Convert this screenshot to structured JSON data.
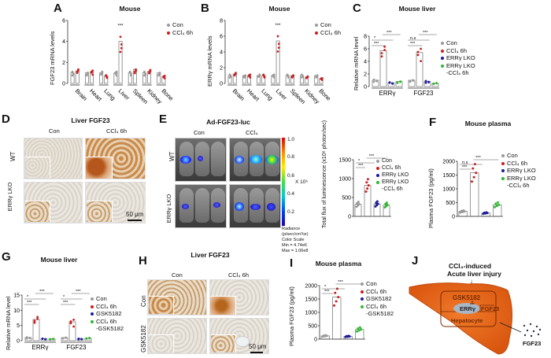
{
  "figure": {
    "panels": {
      "A": {
        "letter": "A",
        "title": "Mouse"
      },
      "B": {
        "letter": "B",
        "title": "Mouse"
      },
      "C": {
        "letter": "C",
        "title": "Mouse liver"
      },
      "D": {
        "letter": "D",
        "title": "Liver FGF23",
        "col_labels": [
          "Con",
          "CCl₄ 6h"
        ],
        "row_labels": [
          "WT",
          "ERRγ LKO"
        ],
        "scale_bar": "50 μm"
      },
      "E": {
        "letter": "E",
        "title": "Ad-FGF23-luc",
        "col_labels": [
          "Con",
          "CCl₄"
        ],
        "row_labels": [
          "WT",
          "ERRγ LKO"
        ],
        "colorbar_ticks": [
          "1.0",
          "0.8",
          "0.6",
          "0.4",
          "0.2"
        ],
        "colorbar_unit": "X 10⁶",
        "colorbar_caption": [
          "Radiance",
          "(p/sec/cm²/sr)",
          "Color Scale",
          "Min = 4.74e6",
          "Max = 1.06e8"
        ]
      },
      "F": {
        "letter": "F",
        "title": "Mouse plasma"
      },
      "G": {
        "letter": "G",
        "title": "Mouse liver"
      },
      "H": {
        "letter": "H",
        "title": "Liver FGF23",
        "col_labels": [
          "Con",
          "CCl₄ 6h"
        ],
        "row_labels": [
          "Con",
          "GSK5182"
        ],
        "scale_bar": "50 μm"
      },
      "I": {
        "letter": "I",
        "title": "Mouse plasma"
      },
      "J": {
        "letter": "J",
        "title": "CCl₄-induced",
        "subtitle": "Acute liver injury",
        "inhibitor": "GSK5182",
        "receptor": "ERRγ",
        "gene": "FGF23",
        "cell": "Hepatocyte",
        "secreted": "FGF23"
      }
    },
    "colors": {
      "con": "#9a9a9a",
      "ccl4": "#d01c1c",
      "lko": "#1a1a9e",
      "lko_ccl4": "#2eb82e",
      "liver": "#e8651a",
      "bar": "#ffffff"
    }
  },
  "chart_data": [
    {
      "id": "A",
      "type": "bar",
      "title": "Mouse",
      "xlabel": "",
      "ylabel": "FGF23 mRNA levels",
      "ylim": [
        0,
        6
      ],
      "yticks": [
        0,
        2,
        4,
        6
      ],
      "categories": [
        "Brain",
        "Heart",
        "Lung",
        "Liver",
        "Spleen",
        "Kidney",
        "Bone"
      ],
      "series": [
        {
          "name": "Con",
          "values": [
            1.0,
            1.0,
            1.0,
            1.0,
            1.0,
            1.0,
            1.0
          ]
        },
        {
          "name": "CCl₄ 6h",
          "values": [
            1.2,
            1.1,
            0.7,
            4.0,
            1.3,
            1.15,
            0.65
          ]
        }
      ],
      "annotations": [
        {
          "category": "Liver",
          "text": "***"
        }
      ],
      "legend": [
        "Con",
        "CCl₄ 6h"
      ]
    },
    {
      "id": "B",
      "type": "bar",
      "title": "Mouse",
      "ylabel": "ERRγ mRNA levels",
      "ylim": [
        0,
        8
      ],
      "yticks": [
        0,
        2,
        4,
        6,
        8
      ],
      "categories": [
        "Brain",
        "Heart",
        "Lung",
        "Liver",
        "Spleen",
        "Kidney",
        "Bone"
      ],
      "series": [
        {
          "name": "Con",
          "values": [
            1.0,
            1.0,
            1.0,
            1.0,
            1.0,
            1.0,
            1.0
          ]
        },
        {
          "name": "CCl₄ 6h",
          "values": [
            1.2,
            1.0,
            1.0,
            5.4,
            1.0,
            0.8,
            0.6
          ]
        }
      ],
      "annotations": [
        {
          "category": "Liver",
          "text": "***"
        }
      ],
      "legend": [
        "Con",
        "CCl₄ 6h"
      ]
    },
    {
      "id": "C",
      "type": "bar",
      "title": "Mouse liver",
      "ylabel": "Relative mRNA level",
      "ylim": [
        0,
        8
      ],
      "yticks": [
        0,
        2,
        4,
        6,
        8
      ],
      "categories": [
        "ERRγ",
        "FGF23"
      ],
      "series": [
        {
          "name": "Con",
          "values": [
            1.0,
            1.0
          ]
        },
        {
          "name": "CCl₄ 6h",
          "values": [
            5.7,
            5.4
          ]
        },
        {
          "name": "ERRγ LKO",
          "values": [
            0.6,
            0.8
          ]
        },
        {
          "name": "ERRγ LKO -CCl₄ 6h",
          "values": [
            0.8,
            0.5
          ]
        }
      ],
      "annotations": [
        {
          "category": "ERRγ",
          "text": [
            "***",
            "*",
            "***"
          ]
        },
        {
          "category": "FGF23",
          "text": [
            "***",
            "n.s",
            "***"
          ]
        }
      ],
      "legend": [
        "Con",
        "CCl₄ 6h",
        "ERRγ LKO",
        "ERRγ LKO",
        "-CCl₄ 6h"
      ]
    },
    {
      "id": "E",
      "type": "bar",
      "ylabel": "Total flux of luminescence (x10⁶ photon/sec)",
      "ylim": [
        0,
        1500
      ],
      "yticks": [
        0,
        500,
        1000,
        1500
      ],
      "categories": [
        "Con",
        "CCl₄ 6h",
        "ERRγ LKO",
        "ERRγ LKO -CCl₄ 6h"
      ],
      "values": [
        320,
        820,
        330,
        300
      ],
      "annotations": [
        "***",
        "*",
        "***"
      ],
      "legend": [
        "Con",
        "CCl₄ 6h",
        "ERRγ LKO",
        "ERRγ LKO",
        "-CCl₄ 6h"
      ]
    },
    {
      "id": "F",
      "type": "bar",
      "title": "Mouse plasma",
      "ylabel": "Plasma FGF23 (pg/ml)",
      "ylim": [
        0,
        2000
      ],
      "yticks": [
        0,
        500,
        1000,
        1500,
        2000
      ],
      "categories": [
        "Con",
        "CCl₄ 6h",
        "ERRγ LKO",
        "ERRγ LKO -CCl₄ 6h"
      ],
      "values": [
        180,
        1580,
        120,
        420
      ],
      "annotations": [
        "***",
        "n.s",
        "***"
      ],
      "legend": [
        "Con",
        "CCl₄ 6h",
        "ERRγ LKO",
        "ERRγ LKO",
        "-CCl₄ 6h"
      ]
    },
    {
      "id": "G",
      "type": "bar",
      "title": "Mouse liver",
      "ylabel": "Relative mRNA level",
      "ylim": [
        0,
        15
      ],
      "yticks": [
        0,
        5,
        10,
        15
      ],
      "categories": [
        "ERRγ",
        "FGF23"
      ],
      "series": [
        {
          "name": "Con",
          "values": [
            1.0,
            1.0
          ]
        },
        {
          "name": "CCl₄ 6h",
          "values": [
            7.0,
            6.2
          ]
        },
        {
          "name": "GSK5182",
          "values": [
            0.6,
            0.6
          ]
        },
        {
          "name": "CCl₄ 6h -GSK5182",
          "values": [
            0.6,
            0.8
          ]
        }
      ],
      "annotations": [
        {
          "category": "ERRγ",
          "text": [
            "***",
            "*",
            "***"
          ]
        },
        {
          "category": "FGF23",
          "text": [
            "***",
            "*",
            "***"
          ]
        }
      ],
      "legend": [
        "Con",
        "CCl₄ 6h",
        "GSK5182",
        "CCl₄ 6h",
        "-GSK5182"
      ]
    },
    {
      "id": "I",
      "type": "bar",
      "title": "Mouse plasma",
      "ylabel": "Plasma FGF23 (pg/ml)",
      "ylim": [
        0,
        2000
      ],
      "yticks": [
        0,
        500,
        1000,
        1500,
        2000
      ],
      "categories": [
        "Con",
        "CCl₄ 6h",
        "GSK5182",
        "CCl₄ 6h -GSK5182"
      ],
      "values": [
        120,
        1570,
        100,
        360
      ],
      "annotations": [
        "***",
        "*",
        "***"
      ],
      "legend": [
        "Con",
        "CCl₄ 6h",
        "GSK5182",
        "CCl₄ 6h",
        "-GSK5182"
      ]
    }
  ]
}
